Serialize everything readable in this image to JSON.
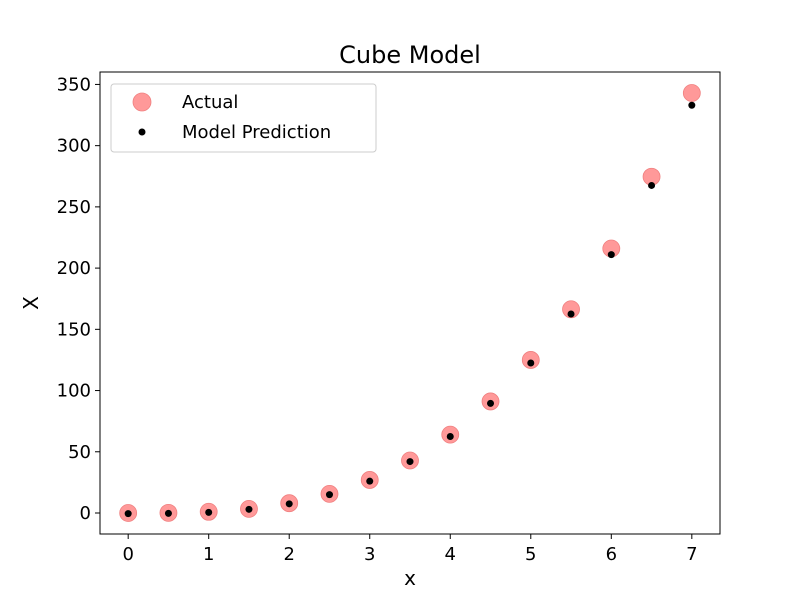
{
  "chart_data": {
    "type": "scatter",
    "title": "Cube Model",
    "xlabel": "x",
    "ylabel": "X",
    "xlim": [
      -0.35,
      7.35
    ],
    "ylim": [
      -17.15,
      360.15
    ],
    "xticks": [
      0,
      1,
      2,
      3,
      4,
      5,
      6,
      7
    ],
    "yticks": [
      0,
      50,
      100,
      150,
      200,
      250,
      300,
      350
    ],
    "grid": false,
    "legend_position": "top-left",
    "series": [
      {
        "name": "Actual",
        "color": "#ff7f7f",
        "marker": "large-circle",
        "points": [
          {
            "x": 0.0,
            "y": 0.0
          },
          {
            "x": 0.5,
            "y": 0.125
          },
          {
            "x": 1.0,
            "y": 1.0
          },
          {
            "x": 1.5,
            "y": 3.375
          },
          {
            "x": 2.0,
            "y": 8.0
          },
          {
            "x": 2.5,
            "y": 15.625
          },
          {
            "x": 3.0,
            "y": 27.0
          },
          {
            "x": 3.5,
            "y": 42.875
          },
          {
            "x": 4.0,
            "y": 64.0
          },
          {
            "x": 4.5,
            "y": 91.125
          },
          {
            "x": 5.0,
            "y": 125.0
          },
          {
            "x": 5.5,
            "y": 166.375
          },
          {
            "x": 6.0,
            "y": 216.0
          },
          {
            "x": 6.5,
            "y": 274.625
          },
          {
            "x": 7.0,
            "y": 343.0
          }
        ]
      },
      {
        "name": "Model Prediction",
        "color": "#000000",
        "marker": "small-dot",
        "points": [
          {
            "x": 0.0,
            "y": -0.5
          },
          {
            "x": 0.5,
            "y": -0.3
          },
          {
            "x": 1.0,
            "y": 0.5
          },
          {
            "x": 1.5,
            "y": 3.0
          },
          {
            "x": 2.0,
            "y": 7.5
          },
          {
            "x": 2.5,
            "y": 15.0
          },
          {
            "x": 3.0,
            "y": 26.0
          },
          {
            "x": 3.5,
            "y": 42.0
          },
          {
            "x": 4.0,
            "y": 62.5
          },
          {
            "x": 4.5,
            "y": 89.5
          },
          {
            "x": 5.0,
            "y": 122.5
          },
          {
            "x": 5.5,
            "y": 162.5
          },
          {
            "x": 6.0,
            "y": 211.0
          },
          {
            "x": 6.5,
            "y": 267.5
          },
          {
            "x": 7.0,
            "y": 333.0
          }
        ]
      }
    ]
  }
}
